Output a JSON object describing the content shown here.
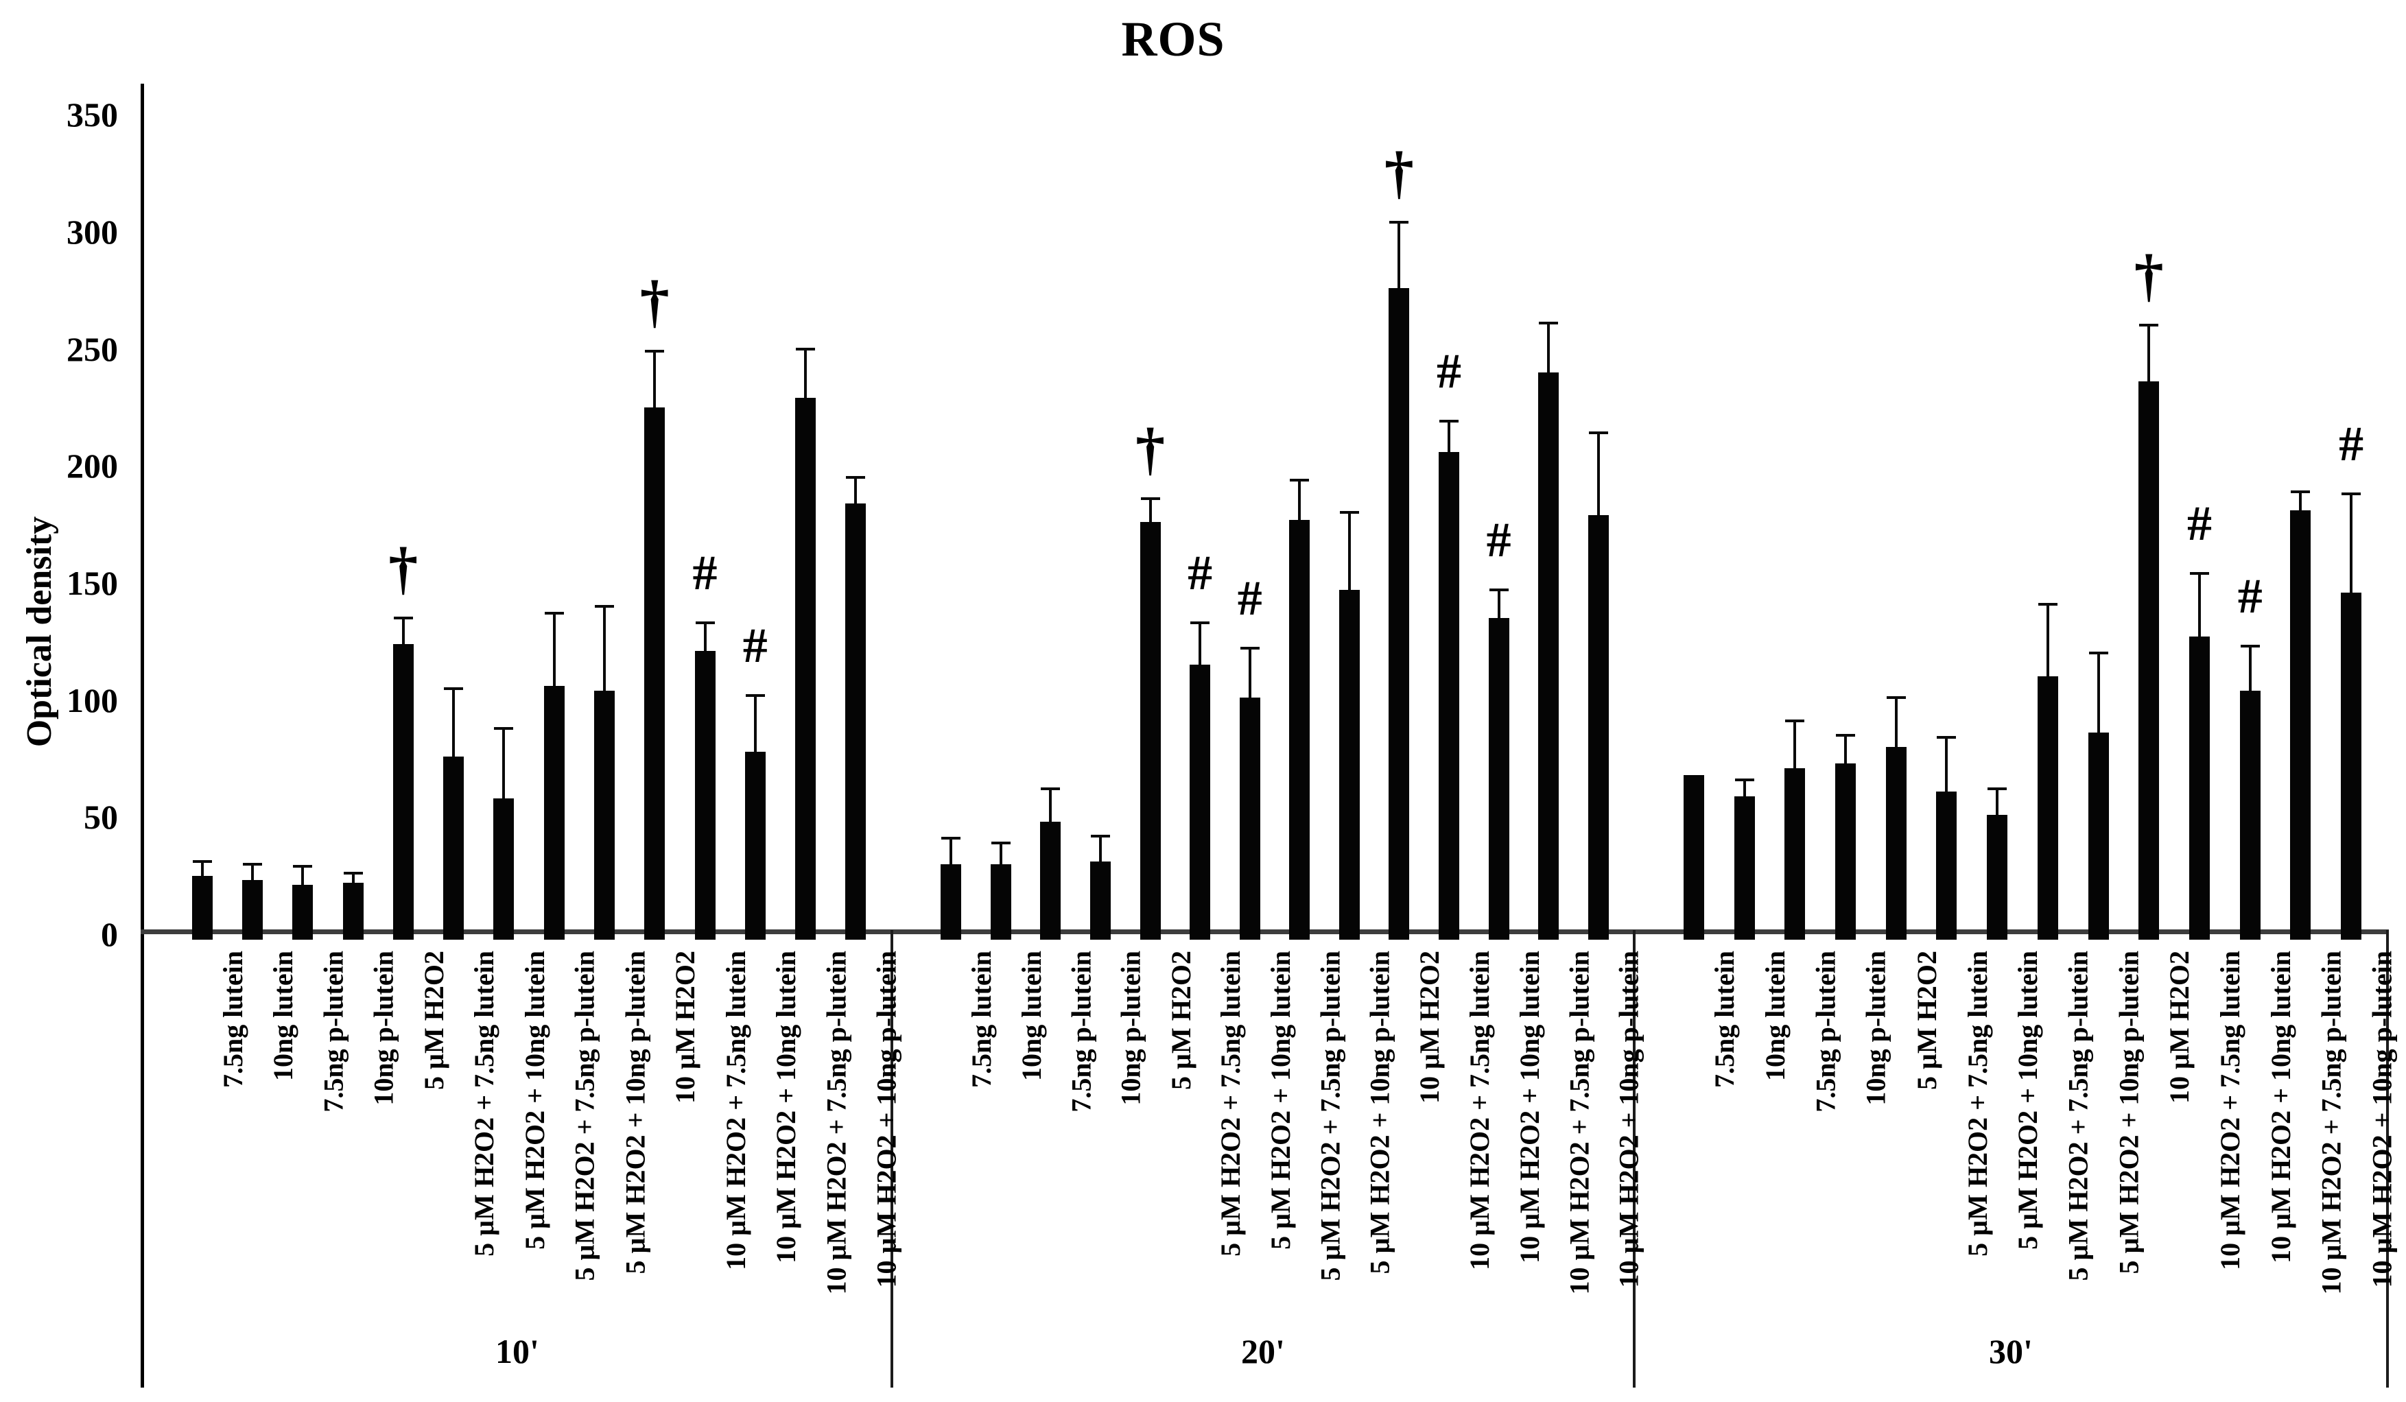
{
  "title": "ROS",
  "y_axis": {
    "label": "Optical density",
    "ticks": [
      0,
      50,
      100,
      150,
      200,
      250,
      300,
      350
    ],
    "max": 350
  },
  "x_axis": {
    "group_labels": [
      "10'",
      "20'",
      "30'"
    ]
  },
  "significance_symbols": {
    "dagger": "†",
    "hash": "#"
  },
  "colors": {
    "bar": "#050505",
    "axis": "#000000",
    "baseline": "#3d3d3d",
    "text": "#000000",
    "background": "#ffffff"
  },
  "chart_data": {
    "type": "bar",
    "title": "ROS",
    "ylabel": "Optical density",
    "xlabel": "",
    "ylim": [
      0,
      350
    ],
    "yticks": [
      0,
      50,
      100,
      150,
      200,
      250,
      300,
      350
    ],
    "grid": false,
    "legend": false,
    "bar_color": "#050505",
    "categories": [
      "7.5ng lutein",
      "10ng lutein",
      "7.5ng p-lutein",
      "10ng p-lutein",
      "5 µM H2O2",
      "5 µM H2O2 + 7.5ng lutein",
      "5 µM H2O2 + 10ng lutein",
      "5 µM H2O2 + 7.5ng p-lutein",
      "5 µM H2O2 + 10ng p-lutein",
      "10 µM H2O2",
      "10 µM H2O2 + 7.5ng lutein",
      "10 µM H2O2 + 10ng lutein",
      "10 µM H2O2 + 7.5ng p-lutein",
      "10 µM H2O2 + 10ng p-lutein"
    ],
    "groups": [
      {
        "label": "10'",
        "values": [
          25,
          23,
          21,
          22,
          124,
          76,
          58,
          106,
          104,
          225,
          121,
          78,
          229,
          184
        ],
        "errors": [
          6,
          7,
          8,
          4,
          11,
          29,
          30,
          31,
          36,
          24,
          12,
          24,
          21,
          11
        ],
        "markers": [
          "",
          "",
          "",
          "",
          "†",
          "",
          "",
          "",
          "",
          "†",
          "#",
          "#",
          "",
          ""
        ]
      },
      {
        "label": "20'",
        "values": [
          30,
          30,
          48,
          31,
          176,
          115,
          101,
          177,
          147,
          276,
          206,
          135,
          240,
          179
        ],
        "errors": [
          11,
          9,
          14,
          11,
          10,
          18,
          21,
          17,
          33,
          28,
          13,
          12,
          21,
          35
        ],
        "markers": [
          "",
          "",
          "",
          "",
          "†",
          "#",
          "#",
          "",
          "",
          "†",
          "#",
          "#",
          "",
          ""
        ]
      },
      {
        "label": "30'",
        "values": [
          68,
          59,
          71,
          73,
          80,
          61,
          51,
          110,
          86,
          236,
          127,
          104,
          181,
          146
        ],
        "errors": [
          0,
          7,
          20,
          12,
          21,
          23,
          11,
          31,
          34,
          24,
          27,
          19,
          8,
          42
        ],
        "markers": [
          "",
          "",
          "",
          "",
          "",
          "",
          "",
          "",
          "",
          "†",
          "#",
          "#",
          "",
          "#"
        ]
      }
    ]
  }
}
